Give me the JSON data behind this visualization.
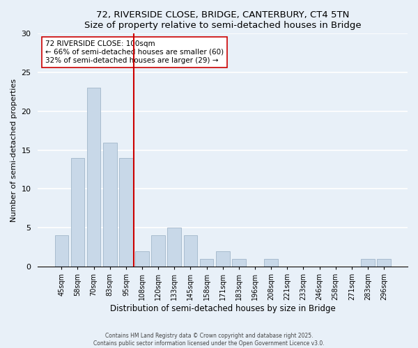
{
  "title": "72, RIVERSIDE CLOSE, BRIDGE, CANTERBURY, CT4 5TN",
  "subtitle": "Size of property relative to semi-detached houses in Bridge",
  "xlabel": "Distribution of semi-detached houses by size in Bridge",
  "ylabel": "Number of semi-detached properties",
  "bin_labels": [
    "45sqm",
    "58sqm",
    "70sqm",
    "83sqm",
    "95sqm",
    "108sqm",
    "120sqm",
    "133sqm",
    "145sqm",
    "158sqm",
    "171sqm",
    "183sqm",
    "196sqm",
    "208sqm",
    "221sqm",
    "233sqm",
    "246sqm",
    "258sqm",
    "271sqm",
    "283sqm",
    "296sqm"
  ],
  "bar_values": [
    4,
    14,
    23,
    16,
    14,
    2,
    4,
    5,
    4,
    1,
    2,
    1,
    0,
    1,
    0,
    0,
    0,
    0,
    0,
    1,
    1
  ],
  "bar_color": "#c8d8e8",
  "bar_edge_color": "#a8bccf",
  "vline_x_index": 5,
  "vline_color": "#cc0000",
  "annotation_title": "72 RIVERSIDE CLOSE: 100sqm",
  "annotation_line1": "← 66% of semi-detached houses are smaller (60)",
  "annotation_line2": "32% of semi-detached houses are larger (29) →",
  "annotation_box_color": "#ffffff",
  "annotation_box_edge": "#cc0000",
  "ylim": [
    0,
    30
  ],
  "yticks": [
    0,
    5,
    10,
    15,
    20,
    25,
    30
  ],
  "footer1": "Contains HM Land Registry data © Crown copyright and database right 2025.",
  "footer2": "Contains public sector information licensed under the Open Government Licence v3.0.",
  "bg_color": "#e8f0f8",
  "plot_bg_color": "#e8f0f8"
}
